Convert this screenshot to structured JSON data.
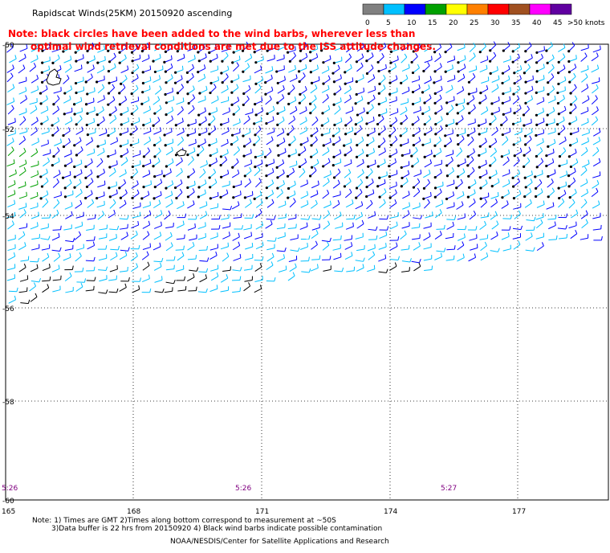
{
  "header": {
    "title": "Rapidscat Winds(25KM) 20150920 ascending"
  },
  "note": {
    "line1": "Note: black circles have been added to the wind barbs, wherever less than",
    "line2": "optimal wind retrieval conditions are met due to the ISS attitude changes.",
    "color": "#ff0000"
  },
  "colorbar": {
    "unit_label": ">50 knots",
    "ticks": [
      "0",
      "5",
      "10",
      "15",
      "20",
      "25",
      "30",
      "35",
      "40",
      "45"
    ],
    "colors": [
      "#808080",
      "#00c0ff",
      "#0000ff",
      "#00a000",
      "#ffff00",
      "#ff8000",
      "#ff0000",
      "#a05020",
      "#ff00ff",
      "#6000a0"
    ]
  },
  "map": {
    "lat_labels": [
      "-50",
      "-52",
      "-54",
      "-56",
      "-58",
      "-60"
    ],
    "lon_labels": [
      "165",
      "168",
      "171",
      "174",
      "177"
    ],
    "time_labels": [
      "5:26",
      "5:26",
      "5:27"
    ],
    "time_color": "#800080"
  },
  "footer": {
    "line1": "Note: 1) Times are GMT 2)Times along bottom correspond to measurement at ~50S",
    "line2": "3)Data buffer is 22 hrs from 20150920 4) Black wind barbs indicate possible contamination",
    "credit": "NOAA/NESDIS/Center for Satellite Applications and Research"
  }
}
